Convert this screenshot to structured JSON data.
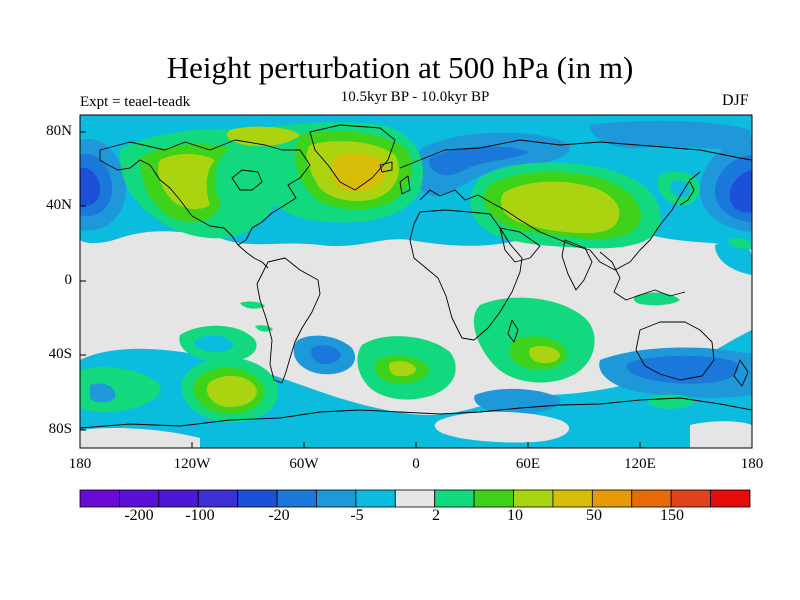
{
  "header": {
    "title": "Height perturbation at 500 hPa (in m)",
    "subtitle": "10.5kyr BP - 10.0kyr BP",
    "experiment": "Expt = teael-teadk",
    "season": "DJF"
  },
  "axes": {
    "lat_labels": [
      "80N",
      "40N",
      "0",
      "40S",
      "80S"
    ],
    "lon_labels": [
      "180",
      "120W",
      "60W",
      "0",
      "60E",
      "120E",
      "180"
    ]
  },
  "colorbar": {
    "colors": [
      "#6a0ad6",
      "#5a10d9",
      "#4d18d4",
      "#3c2fd6",
      "#1d50d8",
      "#1a78da",
      "#1e98d8",
      "#0cbcde",
      "#e5e5e5",
      "#13d97e",
      "#3fd21a",
      "#a9d40f",
      "#d7bd07",
      "#e59a06",
      "#e66a08",
      "#e0431c",
      "#e60b0b"
    ],
    "labels": [
      "-200",
      "-100",
      "-20",
      "-5",
      "2",
      "10",
      "50",
      "150"
    ]
  },
  "map_colors": {
    "background": "#e5e5e5",
    "light_blue": "#0cbcde",
    "mid_blue": "#1e98d8",
    "blue": "#1a78da",
    "dark_blue": "#1d50d8",
    "green": "#13d97e",
    "bright_green": "#3fd21a",
    "yellow_green": "#a9d40f",
    "olive": "#d7bd07"
  }
}
